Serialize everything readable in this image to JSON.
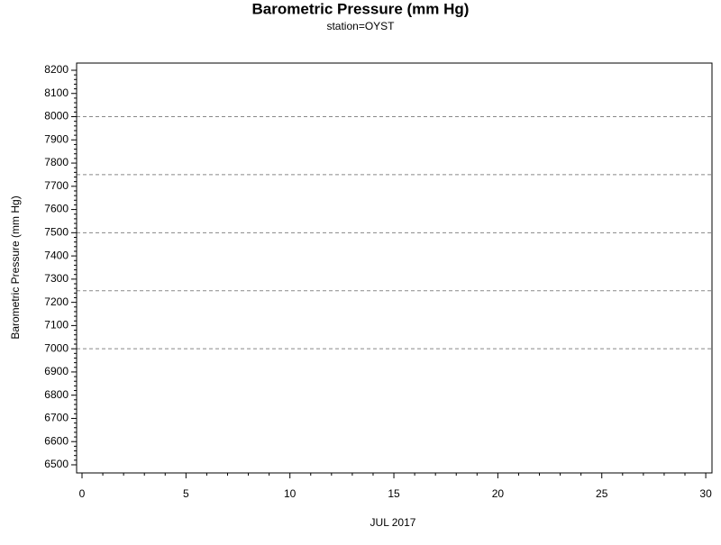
{
  "chart_data": {
    "type": "line",
    "title": "Barometric Pressure (mm Hg)",
    "subtitle": "station=OYST",
    "x_label": "JUL 2017",
    "y_label": "Barometric Pressure (mm Hg)",
    "series": [],
    "xlim": [
      -0.26,
      30.3
    ],
    "xticks": [
      0,
      5,
      10,
      15,
      20,
      25,
      30
    ],
    "x_minor_divisions": 5,
    "ylim": [
      6465,
      8231
    ],
    "yticks": [
      6500,
      6600,
      6700,
      6800,
      6900,
      7000,
      7100,
      7200,
      7300,
      7400,
      7500,
      7600,
      7700,
      7800,
      7900,
      8000,
      8100,
      8200
    ],
    "y_minor_divisions": 5,
    "reference_lines": [
      7000,
      7250,
      7500,
      7750,
      8000
    ],
    "reference_color": "#888888"
  }
}
